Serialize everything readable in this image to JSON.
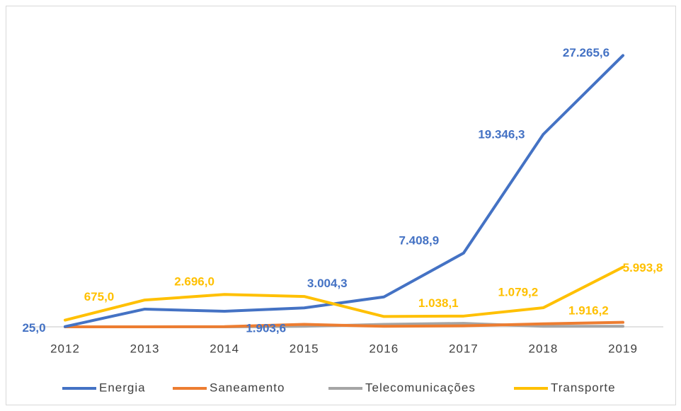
{
  "chart_data": {
    "type": "line",
    "categories": [
      "2012",
      "2013",
      "2014",
      "2015",
      "2016",
      "2017",
      "2018",
      "2019"
    ],
    "series": [
      {
        "name": "Energia",
        "color": "#4472c4",
        "values": [
          25.0,
          1780,
          1560,
          1903.6,
          3004.3,
          7408.9,
          19346.3,
          27265.6
        ],
        "value_labels": [
          "25,0",
          null,
          null,
          "1.903,6",
          "3.004,3",
          "7.408,9",
          "19.346,3",
          "27.265,6"
        ]
      },
      {
        "name": "Saneamento",
        "color": "#ed7d31",
        "values": [
          0,
          0,
          20,
          250,
          50,
          100,
          300,
          450
        ]
      },
      {
        "name": "Telecomunicações",
        "color": "#a5a5a5",
        "values": [
          0,
          0,
          0,
          50,
          250,
          350,
          50,
          50
        ]
      },
      {
        "name": "Transporte",
        "color": "#ffc000",
        "values": [
          675.0,
          2696.0,
          3250,
          3050,
          1038.1,
          1079.2,
          1916.2,
          5993.8
        ],
        "value_labels": [
          "675,0",
          "2.696,0",
          null,
          null,
          "1.038,1",
          "1.079,2",
          "1.916,2",
          "5.993,8"
        ]
      }
    ],
    "ylim": [
      0,
      30000
    ],
    "legend": "bottom"
  }
}
